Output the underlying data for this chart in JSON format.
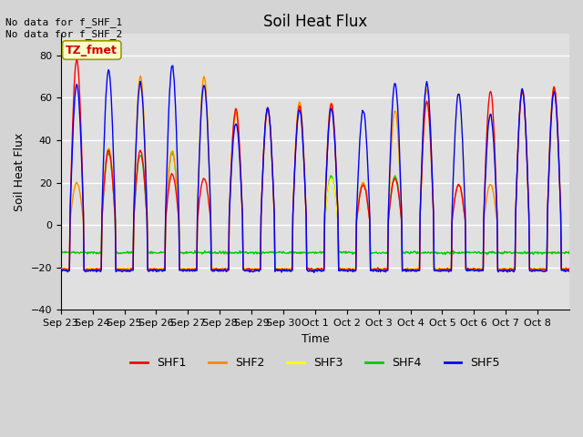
{
  "title": "Soil Heat Flux",
  "xlabel": "Time",
  "ylabel": "Soil Heat Flux",
  "ylim": [
    -40,
    90
  ],
  "n_days": 16,
  "series_names": [
    "SHF1",
    "SHF2",
    "SHF3",
    "SHF4",
    "SHF5"
  ],
  "series_colors": [
    "#ff0000",
    "#ff8800",
    "#ffff00",
    "#00cc00",
    "#0000ff"
  ],
  "annotation_text": "No data for f_SHF_1\nNo data for f_SHF_2",
  "legend_label": "TZ_fmet",
  "legend_label_color": "#cc0000",
  "legend_box_facecolor": "#ffffcc",
  "legend_box_edgecolor": "#999900",
  "fig_bg_color": "#d4d4d4",
  "plot_bg_color": "#e0e0e0",
  "grid_color": "#ffffff",
  "yticks": [
    -40,
    -20,
    0,
    20,
    40,
    60,
    80
  ],
  "xtick_labels": [
    "Sep 23",
    "Sep 24",
    "Sep 25",
    "Sep 26",
    "Sep 27",
    "Sep 28",
    "Sep 29",
    "Sep 30",
    "Oct 1",
    "Oct 2",
    "Oct 3",
    "Oct 4",
    "Oct 5",
    "Oct 6",
    "Oct 7",
    "Oct 8"
  ],
  "shf1_peaks": [
    78,
    35,
    35,
    24,
    22,
    55,
    55,
    56,
    57,
    19,
    22,
    58,
    19,
    63,
    63,
    65
  ],
  "shf2_peaks": [
    20,
    36,
    70,
    35,
    70,
    53,
    54,
    58,
    58,
    20,
    54,
    64,
    19,
    19,
    63,
    65
  ],
  "shf3_peaks": [
    20,
    36,
    70,
    35,
    70,
    53,
    54,
    58,
    22,
    20,
    54,
    57,
    62,
    52,
    63,
    65
  ],
  "shf4_peaks": [
    -13,
    34,
    33,
    34,
    -13,
    -13,
    -13,
    -13,
    23,
    20,
    23,
    -13,
    -13,
    -13,
    -13,
    -13
  ],
  "shf5_peaks": [
    66,
    73,
    67,
    75,
    66,
    48,
    55,
    54,
    55,
    54,
    67,
    67,
    62,
    52,
    64,
    63
  ],
  "shf1_night": -21.0,
  "shf2_night": -21.0,
  "shf3_night": -20.5,
  "shf4_night": -13.0,
  "shf5_night": -21.5
}
